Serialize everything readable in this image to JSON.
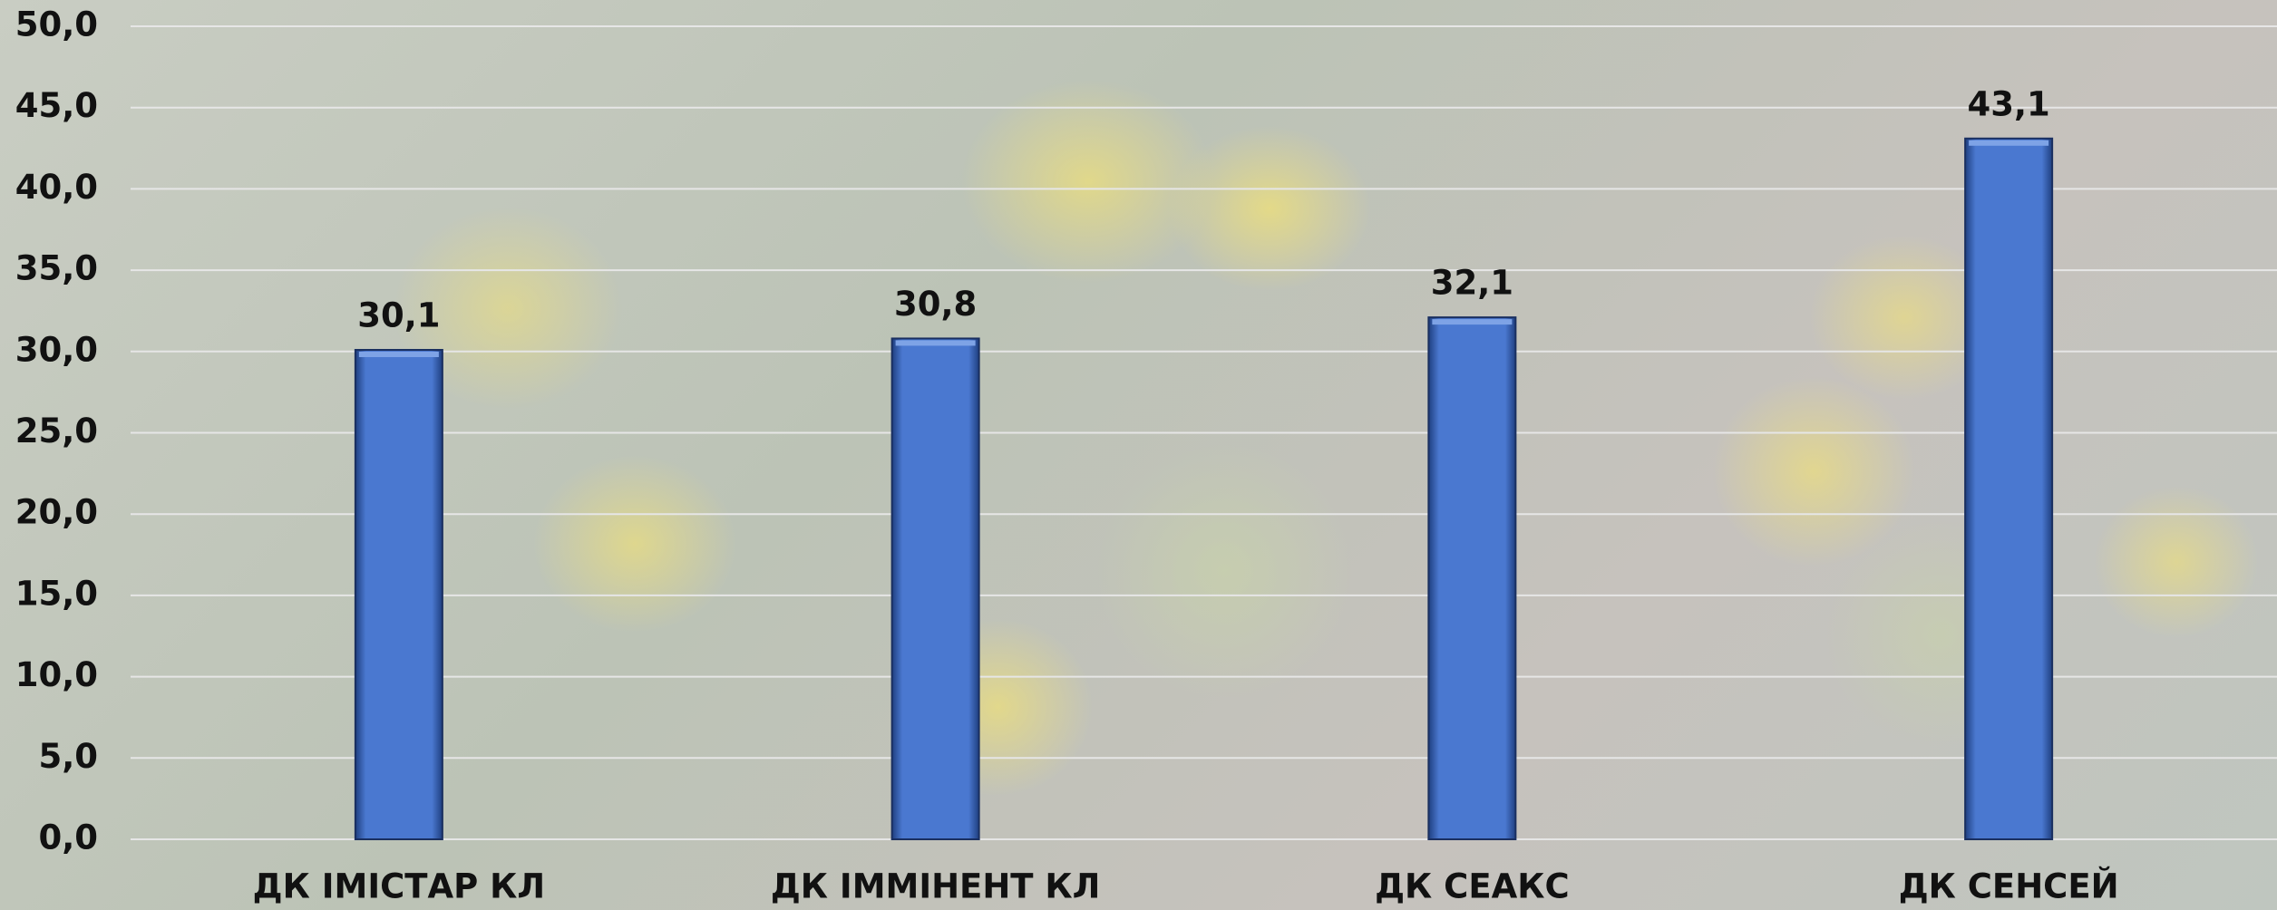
{
  "chart_data": {
    "type": "bar",
    "categories": [
      "ДК ІМІСТАР КЛ",
      "ДК ІММІНЕНТ КЛ",
      "ДК СЕАКС",
      "ДК СЕНСЕЙ"
    ],
    "values": [
      30.1,
      30.8,
      32.1,
      43.1
    ],
    "value_labels": [
      "30,1",
      "30,8",
      "32,1",
      "43,1"
    ],
    "color": "#4a78d0",
    "ylim": [
      0,
      50
    ],
    "yticks": [
      {
        "value": 0,
        "label": "0,0"
      },
      {
        "value": 5,
        "label": "5,0"
      },
      {
        "value": 10,
        "label": "10,0"
      },
      {
        "value": 15,
        "label": "15,0"
      },
      {
        "value": 20,
        "label": "20,0"
      },
      {
        "value": 25,
        "label": "25,0"
      },
      {
        "value": 30,
        "label": "30,0"
      },
      {
        "value": 35,
        "label": "35,0"
      },
      {
        "value": 40,
        "label": "40,0"
      },
      {
        "value": 45,
        "label": "45,0"
      },
      {
        "value": 50,
        "label": "50,0"
      }
    ],
    "grid": true
  }
}
